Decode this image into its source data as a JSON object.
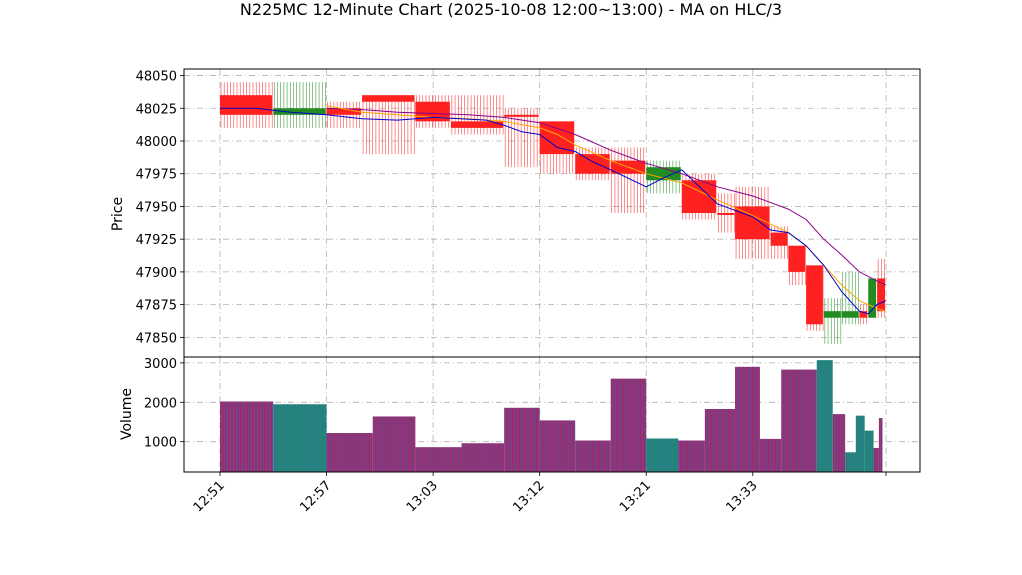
{
  "chart_data": [
    {
      "type": "candlestick",
      "title": "N225MC 12-Minute Chart (2025-10-08 12:00~13:00) - MA on HLC/3",
      "ylabel": "Price",
      "ylim": [
        47835,
        48055
      ],
      "yticks": [
        47850,
        47875,
        47900,
        47925,
        47950,
        47975,
        48000,
        48025,
        48050
      ],
      "grid": true,
      "colors": {
        "up": "#228B22",
        "down": "#FF2020",
        "ma_fast": "#0000CC",
        "ma_mid": "#FFA500",
        "ma_slow": "#8B008B"
      },
      "x": [
        "12:51",
        "12:57",
        "13:03",
        "13:12",
        "13:21",
        "13:33"
      ],
      "candles": [
        {
          "x": 0,
          "open": 48035,
          "close": 48020,
          "high": 48045,
          "low": 48010,
          "dir": "down"
        },
        {
          "x": 3,
          "open": 48020,
          "close": 48025,
          "high": 48045,
          "low": 48010,
          "dir": "up"
        },
        {
          "x": 6,
          "open": 48025,
          "close": 48020,
          "high": 48030,
          "low": 48010,
          "dir": "down"
        },
        {
          "x": 8,
          "open": 48035,
          "close": 48030,
          "high": 48035,
          "low": 47990,
          "dir": "down"
        },
        {
          "x": 11,
          "open": 48030,
          "close": 48015,
          "high": 48035,
          "low": 48010,
          "dir": "down"
        },
        {
          "x": 13,
          "open": 48015,
          "close": 48010,
          "high": 48035,
          "low": 48005,
          "dir": "down"
        },
        {
          "x": 16,
          "open": 48020,
          "close": 48020,
          "high": 48025,
          "low": 47980,
          "dir": "down"
        },
        {
          "x": 18,
          "open": 48015,
          "close": 47990,
          "high": 48015,
          "low": 47975,
          "dir": "down"
        },
        {
          "x": 20,
          "open": 47990,
          "close": 47975,
          "high": 47995,
          "low": 47970,
          "dir": "down"
        },
        {
          "x": 22,
          "open": 47985,
          "close": 47975,
          "high": 47995,
          "low": 47945,
          "dir": "down"
        },
        {
          "x": 24,
          "open": 47970,
          "close": 47980,
          "high": 47985,
          "low": 47960,
          "dir": "up"
        },
        {
          "x": 26,
          "open": 47970,
          "close": 47945,
          "high": 47975,
          "low": 47940,
          "dir": "down"
        },
        {
          "x": 28,
          "open": 47945,
          "close": 47945,
          "high": 47960,
          "low": 47930,
          "dir": "down"
        },
        {
          "x": 29,
          "open": 47950,
          "close": 47925,
          "high": 47965,
          "low": 47910,
          "dir": "down"
        },
        {
          "x": 31,
          "open": 47930,
          "close": 47920,
          "high": 47935,
          "low": 47910,
          "dir": "down"
        },
        {
          "x": 32,
          "open": 47920,
          "close": 47900,
          "high": 47920,
          "low": 47890,
          "dir": "down"
        },
        {
          "x": 33,
          "open": 47905,
          "close": 47860,
          "high": 47905,
          "low": 47855,
          "dir": "down"
        },
        {
          "x": 34,
          "open": 47865,
          "close": 47870,
          "high": 47880,
          "low": 47845,
          "dir": "up"
        },
        {
          "x": 35,
          "open": 47865,
          "close": 47870,
          "high": 47900,
          "low": 47860,
          "dir": "up"
        },
        {
          "x": 36,
          "open": 47870,
          "close": 47865,
          "high": 47875,
          "low": 47860,
          "dir": "down"
        },
        {
          "x": 36.5,
          "open": 47865,
          "close": 47895,
          "high": 47895,
          "low": 47865,
          "dir": "up"
        },
        {
          "x": 37,
          "open": 47895,
          "close": 47870,
          "high": 47910,
          "low": 47865,
          "dir": "down"
        }
      ],
      "ma_fast": [
        [
          0,
          48025
        ],
        [
          2,
          48025
        ],
        [
          4,
          48022
        ],
        [
          6,
          48020
        ],
        [
          8,
          48017
        ],
        [
          10,
          48016
        ],
        [
          12,
          48018
        ],
        [
          15,
          48016
        ],
        [
          16,
          48012
        ],
        [
          17,
          48007
        ],
        [
          18,
          48005
        ],
        [
          19,
          47995
        ],
        [
          20,
          47992
        ],
        [
          21,
          47984
        ],
        [
          22,
          47978
        ],
        [
          24,
          47965
        ],
        [
          25,
          47972
        ],
        [
          26,
          47978
        ],
        [
          27,
          47965
        ],
        [
          28,
          47952
        ],
        [
          30,
          47942
        ],
        [
          31,
          47932
        ],
        [
          32,
          47930
        ],
        [
          33,
          47920
        ],
        [
          34,
          47905
        ],
        [
          35,
          47885
        ],
        [
          36,
          47870
        ],
        [
          36.5,
          47868
        ],
        [
          37,
          47875
        ],
        [
          37.5,
          47878
        ]
      ],
      "ma_mid": [
        [
          6,
          48027
        ],
        [
          8,
          48022
        ],
        [
          10,
          48020
        ],
        [
          12,
          48018
        ],
        [
          14,
          48017
        ],
        [
          16,
          48015
        ],
        [
          18,
          48010
        ],
        [
          19,
          48005
        ],
        [
          20,
          47997
        ],
        [
          22,
          47985
        ],
        [
          24,
          47975
        ],
        [
          26,
          47968
        ],
        [
          28,
          47955
        ],
        [
          30,
          47943
        ],
        [
          32,
          47930
        ],
        [
          33,
          47920
        ],
        [
          34,
          47905
        ],
        [
          35,
          47890
        ],
        [
          36,
          47878
        ],
        [
          37,
          47872
        ],
        [
          37.5,
          47870
        ]
      ],
      "ma_slow": [
        [
          6,
          48025
        ],
        [
          8,
          48024
        ],
        [
          10,
          48022
        ],
        [
          12,
          48021
        ],
        [
          14,
          48020
        ],
        [
          16,
          48018
        ],
        [
          18,
          48014
        ],
        [
          20,
          48005
        ],
        [
          22,
          47993
        ],
        [
          24,
          47983
        ],
        [
          26,
          47975
        ],
        [
          28,
          47965
        ],
        [
          30,
          47958
        ],
        [
          32,
          47948
        ],
        [
          33,
          47940
        ],
        [
          34,
          47925
        ],
        [
          35,
          47913
        ],
        [
          36,
          47900
        ],
        [
          37,
          47893
        ],
        [
          37.5,
          47890
        ]
      ]
    },
    {
      "type": "bar",
      "ylabel": "Volume",
      "ylim": [
        230,
        3150
      ],
      "yticks": [
        1000,
        2000,
        3000
      ],
      "xtick_labels": [
        "12:51",
        "12:57",
        "13:03",
        "13:12",
        "13:21",
        "13:33"
      ],
      "bars": [
        {
          "x0": 0,
          "x1": 3,
          "value": 2020,
          "dir": "down"
        },
        {
          "x0": 3,
          "x1": 6,
          "value": 1950,
          "dir": "up"
        },
        {
          "x0": 6,
          "x1": 8.6,
          "value": 1220,
          "dir": "down"
        },
        {
          "x0": 8.6,
          "x1": 11,
          "value": 1640,
          "dir": "down"
        },
        {
          "x0": 11,
          "x1": 13.6,
          "value": 860,
          "dir": "down"
        },
        {
          "x0": 13.6,
          "x1": 16,
          "value": 960,
          "dir": "down"
        },
        {
          "x0": 16,
          "x1": 18,
          "value": 1860,
          "dir": "down"
        },
        {
          "x0": 18,
          "x1": 20,
          "value": 1540,
          "dir": "down"
        },
        {
          "x0": 20,
          "x1": 22,
          "value": 1030,
          "dir": "down"
        },
        {
          "x0": 22,
          "x1": 24,
          "value": 2600,
          "dir": "down"
        },
        {
          "x0": 24,
          "x1": 25.8,
          "value": 1080,
          "dir": "up"
        },
        {
          "x0": 25.8,
          "x1": 27.3,
          "value": 1030,
          "dir": "down"
        },
        {
          "x0": 27.3,
          "x1": 29,
          "value": 1830,
          "dir": "down"
        },
        {
          "x0": 29,
          "x1": 30.4,
          "value": 2900,
          "dir": "down"
        },
        {
          "x0": 30.4,
          "x1": 31.6,
          "value": 1070,
          "dir": "down"
        },
        {
          "x0": 31.6,
          "x1": 33.6,
          "value": 2830,
          "dir": "down"
        },
        {
          "x0": 33.6,
          "x1": 34.5,
          "value": 3070,
          "dir": "up"
        },
        {
          "x0": 34.5,
          "x1": 35.2,
          "value": 1700,
          "dir": "down"
        },
        {
          "x0": 35.2,
          "x1": 35.8,
          "value": 730,
          "dir": "up"
        },
        {
          "x0": 35.8,
          "x1": 36.3,
          "value": 1660,
          "dir": "up"
        },
        {
          "x0": 36.3,
          "x1": 36.8,
          "value": 1280,
          "dir": "up"
        },
        {
          "x0": 36.8,
          "x1": 37.1,
          "value": 840,
          "dir": "down"
        },
        {
          "x0": 37.1,
          "x1": 37.3,
          "value": 1600,
          "dir": "down"
        }
      ]
    }
  ]
}
